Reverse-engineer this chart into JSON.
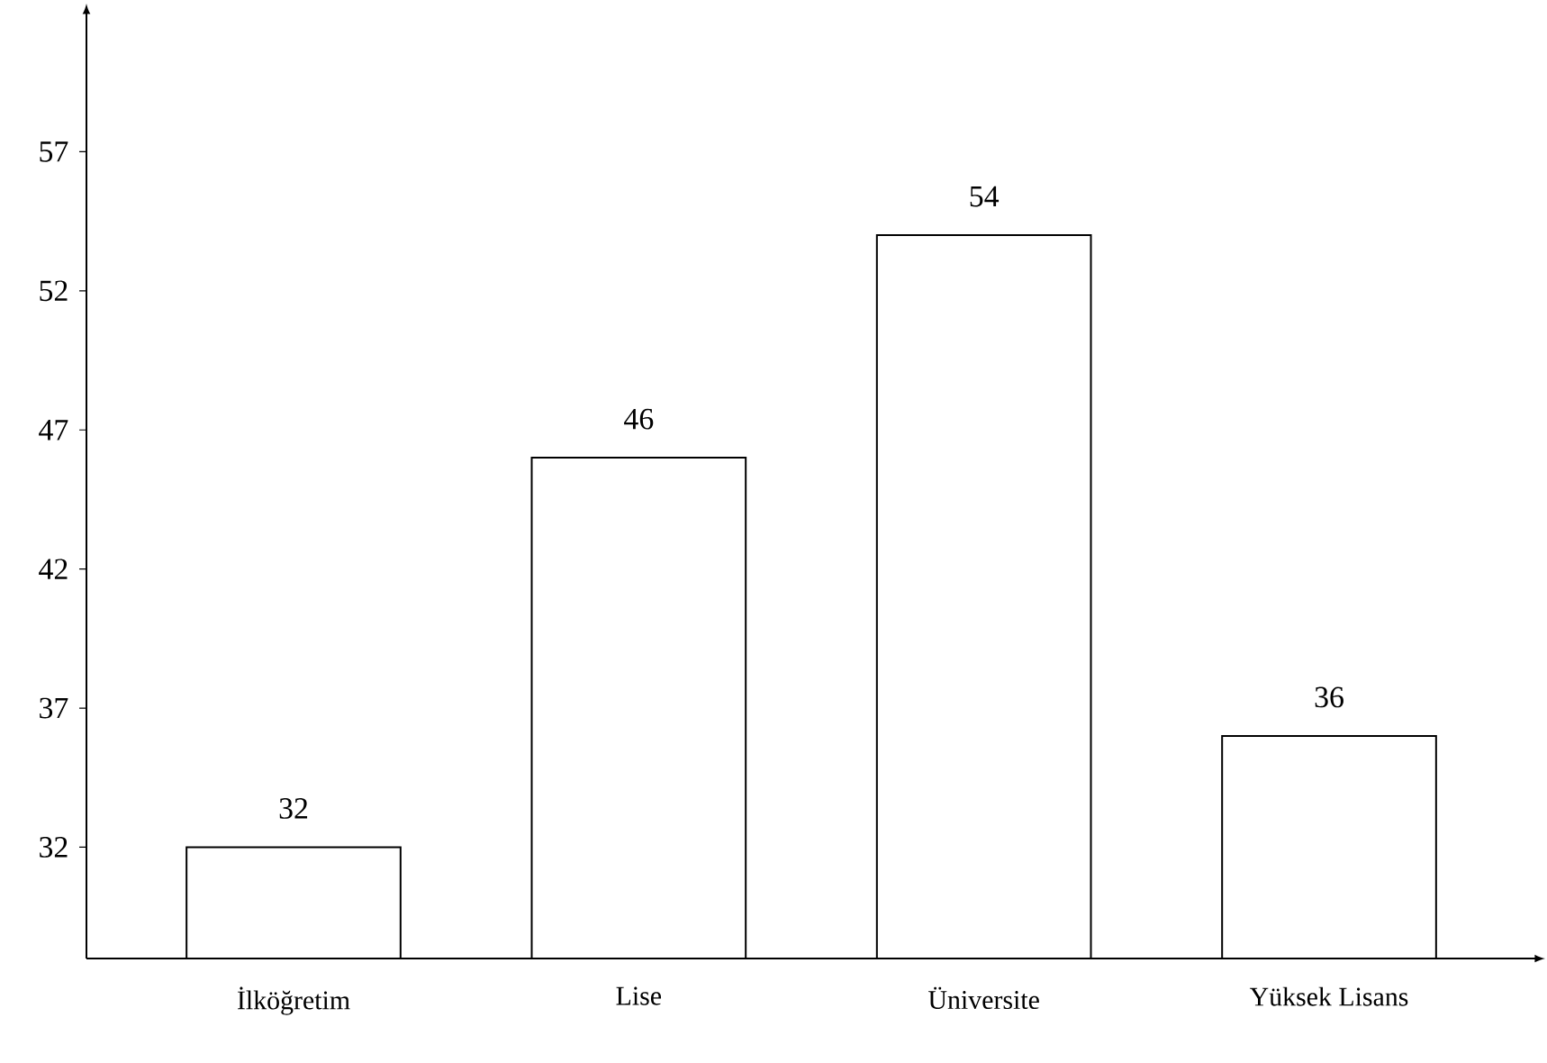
{
  "chart_data": {
    "type": "bar",
    "categories": [
      "İlköğretim",
      "Lise",
      "Üniversite",
      "Yüksek Lisans"
    ],
    "values": [
      32,
      46,
      54,
      36
    ],
    "value_labels": [
      "32",
      "46",
      "54",
      "36"
    ],
    "color": "#ffffff",
    "ylim": [
      28,
      62
    ],
    "yticks": [
      32,
      37,
      42,
      47,
      52,
      57
    ],
    "grid": false
  }
}
